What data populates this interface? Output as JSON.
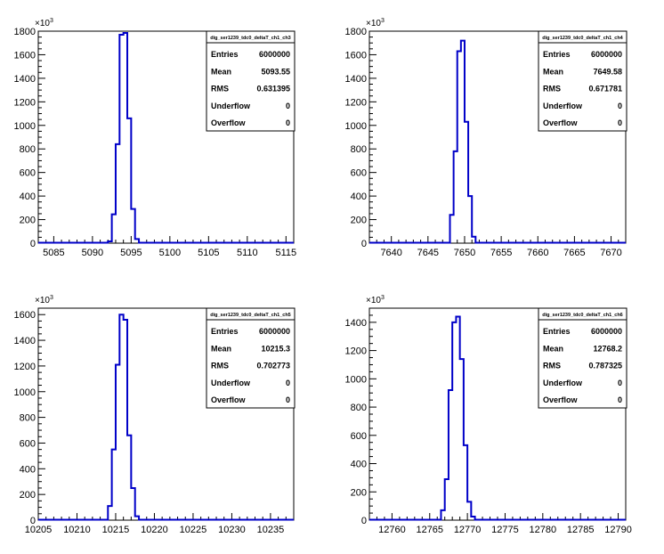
{
  "chart_data": [
    {
      "type": "histogram",
      "title": "dig_ser1239_tdc0_deltaT_ch1_ch3",
      "xlim": [
        5083,
        5116
      ],
      "ylim": [
        0,
        1800
      ],
      "y_exponent": "10",
      "y_exponent_power": "3",
      "x_ticks": [
        "5085",
        "5090",
        "5095",
        "5100",
        "5105",
        "5110",
        "5115"
      ],
      "y_ticks": [
        "0",
        "200",
        "400",
        "600",
        "800",
        "1000",
        "1200",
        "1400",
        "1600",
        "1800"
      ],
      "bins": [
        {
          "x": 5091.5,
          "y": 0
        },
        {
          "x": 5092,
          "y": 15
        },
        {
          "x": 5092.5,
          "y": 245
        },
        {
          "x": 5093,
          "y": 840
        },
        {
          "x": 5093.5,
          "y": 1770
        },
        {
          "x": 5094,
          "y": 1785
        },
        {
          "x": 5094.5,
          "y": 1060
        },
        {
          "x": 5095,
          "y": 290
        },
        {
          "x": 5095.5,
          "y": 35
        },
        {
          "x": 5096,
          "y": 0
        }
      ],
      "bin_width": 0.5,
      "stats": [
        {
          "label": "Entries",
          "value": "6000000"
        },
        {
          "label": "Mean",
          "value": "5093.55"
        },
        {
          "label": "RMS",
          "value": "0.631395"
        },
        {
          "label": "Underflow",
          "value": "0"
        },
        {
          "label": "Overflow",
          "value": "0"
        }
      ]
    },
    {
      "type": "histogram",
      "title": "dig_ser1239_tdc0_deltaT_ch1_ch4",
      "xlim": [
        7637,
        7672
      ],
      "ylim": [
        0,
        1800
      ],
      "y_exponent": "10",
      "y_exponent_power": "3",
      "x_ticks": [
        "7640",
        "7645",
        "7650",
        "7655",
        "7660",
        "7665",
        "7670"
      ],
      "y_ticks": [
        "0",
        "200",
        "400",
        "600",
        "800",
        "1000",
        "1200",
        "1400",
        "1600",
        "1800"
      ],
      "bins": [
        {
          "x": 7647.5,
          "y": 0
        },
        {
          "x": 7648,
          "y": 240
        },
        {
          "x": 7648.5,
          "y": 780
        },
        {
          "x": 7649,
          "y": 1630
        },
        {
          "x": 7649.5,
          "y": 1720
        },
        {
          "x": 7650,
          "y": 1030
        },
        {
          "x": 7650.5,
          "y": 400
        },
        {
          "x": 7651,
          "y": 55
        },
        {
          "x": 7651.5,
          "y": 0
        }
      ],
      "bin_width": 0.5,
      "stats": [
        {
          "label": "Entries",
          "value": "6000000"
        },
        {
          "label": "Mean",
          "value": "7649.58"
        },
        {
          "label": "RMS",
          "value": "0.671781"
        },
        {
          "label": "Underflow",
          "value": "0"
        },
        {
          "label": "Overflow",
          "value": "0"
        }
      ]
    },
    {
      "type": "histogram",
      "title": "dig_ser1239_tdc0_deltaT_ch1_ch5",
      "xlim": [
        10205,
        10238
      ],
      "ylim": [
        0,
        1650
      ],
      "y_exponent": "10",
      "y_exponent_power": "3",
      "x_ticks": [
        "10205",
        "10210",
        "10215",
        "10220",
        "10225",
        "10230",
        "10235"
      ],
      "y_ticks": [
        "0",
        "200",
        "400",
        "600",
        "800",
        "1000",
        "1200",
        "1400",
        "1600"
      ],
      "bins": [
        {
          "x": 10213.5,
          "y": 0
        },
        {
          "x": 10214,
          "y": 110
        },
        {
          "x": 10214.5,
          "y": 550
        },
        {
          "x": 10215,
          "y": 1210
        },
        {
          "x": 10215.5,
          "y": 1600
        },
        {
          "x": 10216,
          "y": 1560
        },
        {
          "x": 10216.5,
          "y": 660
        },
        {
          "x": 10217,
          "y": 250
        },
        {
          "x": 10217.5,
          "y": 30
        },
        {
          "x": 10218,
          "y": 0
        }
      ],
      "bin_width": 0.5,
      "stats": [
        {
          "label": "Entries",
          "value": "6000000"
        },
        {
          "label": "Mean",
          "value": "10215.3"
        },
        {
          "label": "RMS",
          "value": "0.702773"
        },
        {
          "label": "Underflow",
          "value": "0"
        },
        {
          "label": "Overflow",
          "value": "0"
        }
      ]
    },
    {
      "type": "histogram",
      "title": "dig_ser1239_tdc0_deltaT_ch1_ch6",
      "xlim": [
        12757,
        12791
      ],
      "ylim": [
        0,
        1500
      ],
      "y_exponent": "10",
      "y_exponent_power": "3",
      "x_ticks": [
        "12760",
        "12765",
        "12770",
        "12775",
        "12780",
        "12785",
        "12790"
      ],
      "y_ticks": [
        "0",
        "200",
        "400",
        "600",
        "800",
        "1000",
        "1200",
        "1400"
      ],
      "bins": [
        {
          "x": 12766,
          "y": 0
        },
        {
          "x": 12766.5,
          "y": 70
        },
        {
          "x": 12767,
          "y": 290
        },
        {
          "x": 12767.5,
          "y": 920
        },
        {
          "x": 12768,
          "y": 1400
        },
        {
          "x": 12768.5,
          "y": 1440
        },
        {
          "x": 12769,
          "y": 1140
        },
        {
          "x": 12769.5,
          "y": 530
        },
        {
          "x": 12770,
          "y": 130
        },
        {
          "x": 12770.5,
          "y": 25
        },
        {
          "x": 12771,
          "y": 0
        }
      ],
      "bin_width": 0.5,
      "stats": [
        {
          "label": "Entries",
          "value": "6000000"
        },
        {
          "label": "Mean",
          "value": "12768.2"
        },
        {
          "label": "RMS",
          "value": "0.787325"
        },
        {
          "label": "Underflow",
          "value": "0"
        },
        {
          "label": "Overflow",
          "value": "0"
        }
      ]
    }
  ],
  "colors": {
    "histogram_line": "#0000c8",
    "axis": "#000000",
    "background": "#ffffff"
  }
}
